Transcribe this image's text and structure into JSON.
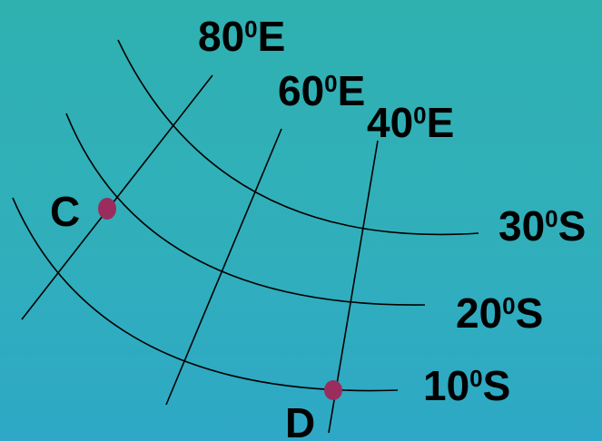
{
  "colors": {
    "background_top": "#2fb1b0",
    "background_bottom": "#2ea8c6",
    "line": "#000000",
    "point": "#9b2c5e"
  },
  "meridians": [
    {
      "value": "80",
      "degree": "0",
      "dir": "E"
    },
    {
      "value": "60",
      "degree": "0",
      "dir": "E"
    },
    {
      "value": "40",
      "degree": "0",
      "dir": "E"
    }
  ],
  "parallels": [
    {
      "value": "30",
      "degree": "0",
      "dir": "S"
    },
    {
      "value": "20",
      "degree": "0",
      "dir": "S"
    },
    {
      "value": "10",
      "degree": "0",
      "dir": "S"
    }
  ],
  "points": [
    {
      "label": "C"
    },
    {
      "label": "D"
    }
  ]
}
